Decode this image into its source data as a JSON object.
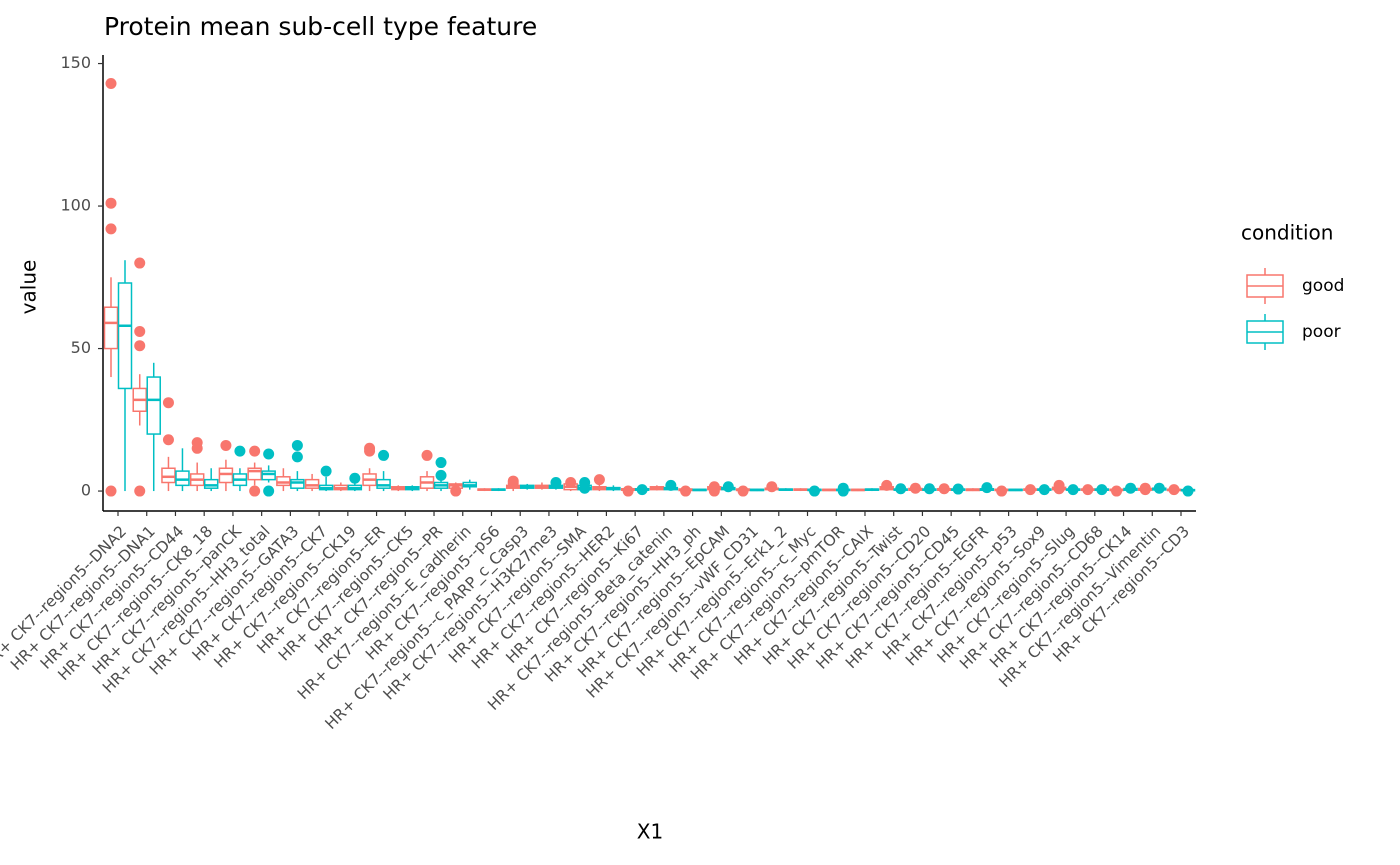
{
  "chart_data": {
    "type": "box",
    "title": "Protein mean sub-cell type feature",
    "x_label": "X1",
    "y_label": "value",
    "legend_title": "condition",
    "categories": [
      "HR+ CK7--region5--DNA2",
      "HR+ CK7--region5--DNA1",
      "HR+ CK7--region5--CD44",
      "HR+ CK7--region5--CK8_18",
      "HR+ CK7--region5--panCK",
      "HR+ CK7--region5--HH3_total",
      "HR+ CK7--region5--GATA3",
      "HR+ CK7--region5--CK7",
      "HR+ CK7--region5--CK19",
      "HR+ CK7--region5--ER",
      "HR+ CK7--region5--CK5",
      "HR+ CK7--region5--PR",
      "HR+ CK7--region5--E_cadherin",
      "HR+ CK7--region5--pS6",
      "HR+ CK7--region5--c_PARP_c_Casp3",
      "HR+ CK7--region5--H3K27me3",
      "HR+ CK7--region5--SMA",
      "HR+ CK7--region5--HER2",
      "HR+ CK7--region5--Ki67",
      "HR+ CK7--region5--Beta_catenin",
      "HR+ CK7--region5--HH3_ph",
      "HR+ CK7--region5--EpCAM",
      "HR+ CK7--region5--vWF_CD31",
      "HR+ CK7--region5--Erk1_2",
      "HR+ CK7--region5--c_Myc",
      "HR+ CK7--region5--pmTOR",
      "HR+ CK7--region5--CAIX",
      "HR+ CK7--region5--Twist",
      "HR+ CK7--region5--CD20",
      "HR+ CK7--region5--CD45",
      "HR+ CK7--region5--EGFR",
      "HR+ CK7--region5--p53",
      "HR+ CK7--region5--Sox9",
      "HR+ CK7--region5--Slug",
      "HR+ CK7--region5--CD68",
      "HR+ CK7--region5--CK14",
      "HR+ CK7--region5--Vimentin",
      "HR+ CK7--region5--CD3"
    ],
    "ylim": [
      -7,
      153
    ],
    "yticks": [
      0,
      50,
      100,
      150
    ],
    "series": [
      {
        "name": "good",
        "color": "#f8766d",
        "low": [
          40,
          23,
          0,
          0,
          0,
          2,
          0,
          0,
          0,
          0,
          0,
          0,
          0.5,
          0,
          0,
          0.5,
          0,
          0,
          0,
          0.2,
          0,
          0,
          0,
          0.3,
          0,
          0,
          0,
          0.2,
          0,
          0,
          0,
          0,
          0,
          0.2,
          0,
          0,
          0,
          0
        ],
        "q1": [
          50,
          28,
          3,
          2,
          3,
          4,
          2,
          1,
          0.5,
          2,
          0.5,
          1,
          1,
          0.3,
          1,
          1,
          0.5,
          0.5,
          0.3,
          0.5,
          0.2,
          0.5,
          0.2,
          0.5,
          0.3,
          0.2,
          0.2,
          0.5,
          0.3,
          0.3,
          0.2,
          0.2,
          0.3,
          0.5,
          0.3,
          0.2,
          0.3,
          0.2
        ],
        "median": [
          59,
          32,
          5,
          4,
          6,
          7,
          3,
          2,
          1,
          4,
          1,
          3,
          2,
          0.5,
          1.5,
          1.5,
          1.5,
          1,
          0.5,
          1,
          0.5,
          1,
          0.5,
          0.8,
          0.5,
          0.4,
          0.4,
          1,
          0.6,
          0.5,
          0.5,
          0.4,
          0.5,
          1,
          0.5,
          0.4,
          0.6,
          0.4
        ],
        "q3": [
          64.5,
          36,
          8,
          6,
          8,
          8,
          5,
          4,
          2,
          6,
          1.5,
          5,
          2.5,
          0.7,
          2,
          2,
          2.5,
          1.5,
          0.8,
          1.5,
          0.7,
          1.5,
          0.7,
          1,
          0.7,
          0.6,
          0.6,
          1.5,
          0.9,
          0.8,
          0.7,
          0.6,
          0.7,
          1.3,
          0.7,
          0.6,
          0.9,
          0.6
        ],
        "high": [
          75,
          41,
          12,
          10,
          11,
          10,
          8,
          6,
          3,
          8,
          2,
          7,
          3,
          1,
          2.5,
          3,
          3,
          2.5,
          1,
          2,
          1,
          2,
          1,
          1.3,
          1,
          0.8,
          0.8,
          2,
          1.2,
          1,
          1,
          0.8,
          1,
          1.7,
          1,
          0.8,
          1.2,
          0.8
        ],
        "outliers": [
          [
            143,
            101,
            92,
            0
          ],
          [
            80,
            56,
            51,
            0
          ],
          [
            31,
            18
          ],
          [
            17,
            15
          ],
          [
            16
          ],
          [
            14,
            0
          ],
          [],
          [],
          [],
          [
            15,
            14
          ],
          [],
          [
            12.5
          ],
          [
            0
          ],
          [],
          [
            3.5,
            2.8
          ],
          [],
          [
            3
          ],
          [
            4
          ],
          [
            0
          ],
          [],
          [
            0
          ],
          [
            1.5,
            0
          ],
          [
            0
          ],
          [
            1.5
          ],
          [],
          [],
          [],
          [
            2
          ],
          [
            1
          ],
          [
            0.8
          ],
          [],
          [
            0
          ],
          [
            0.5
          ],
          [
            2,
            0.8
          ],
          [
            0.5
          ],
          [
            0
          ],
          [
            1,
            0.5
          ],
          [
            0.5
          ]
        ]
      },
      {
        "name": "poor",
        "color": "#00bfc4",
        "low": [
          0,
          0,
          0,
          0,
          0,
          3,
          0,
          0,
          0,
          0,
          0,
          0,
          0.5,
          0,
          0.5,
          0.5,
          0,
          0,
          0,
          0.2,
          0,
          0,
          0,
          0.1,
          0,
          0,
          0,
          0.1,
          0,
          0,
          0,
          0,
          0,
          0,
          0,
          0,
          0.1,
          0
        ],
        "q1": [
          36,
          20,
          2,
          1,
          2,
          4,
          1,
          0.5,
          0.5,
          1,
          0.5,
          1,
          1.5,
          0.3,
          1,
          1,
          0.5,
          0.5,
          0.3,
          0.5,
          0.2,
          0.5,
          0.2,
          0.3,
          0.2,
          0.2,
          0.3,
          0.3,
          0.3,
          0.3,
          0.3,
          0.2,
          0.3,
          0.3,
          0.3,
          0.3,
          0.4,
          0.1
        ],
        "median": [
          58,
          32,
          4,
          2,
          4,
          6,
          3,
          1,
          1,
          2,
          1,
          2,
          2,
          0.5,
          1.5,
          1.5,
          1,
          1,
          0.5,
          1,
          0.4,
          1,
          0.4,
          0.5,
          0.4,
          0.4,
          0.5,
          0.5,
          0.5,
          0.5,
          0.5,
          0.4,
          0.5,
          0.5,
          0.5,
          0.6,
          0.7,
          0.3
        ],
        "q3": [
          73,
          40,
          7,
          4,
          6,
          7,
          4,
          2,
          2,
          4,
          1.5,
          3,
          3,
          0.7,
          2,
          2,
          2,
          1.2,
          0.8,
          1.2,
          0.6,
          1.2,
          0.6,
          0.7,
          0.6,
          0.6,
          0.7,
          0.7,
          0.7,
          0.7,
          0.8,
          0.6,
          0.7,
          0.7,
          0.7,
          0.9,
          1,
          0.5
        ],
        "high": [
          81,
          45,
          15,
          8,
          8,
          9,
          7,
          5,
          3,
          7,
          2,
          4,
          4,
          1,
          2.5,
          2.5,
          3,
          2,
          1,
          1.5,
          0.8,
          1.5,
          0.8,
          1,
          0.8,
          0.8,
          1,
          1,
          0.9,
          0.9,
          1,
          0.8,
          1,
          1,
          1,
          1.2,
          1.3,
          0.7
        ],
        "outliers": [
          [],
          [],
          [],
          [],
          [
            14
          ],
          [
            13,
            0
          ],
          [
            16,
            12
          ],
          [
            7
          ],
          [
            4.5
          ],
          [
            12.5
          ],
          [],
          [
            10,
            5.5
          ],
          [],
          [],
          [],
          [
            3
          ],
          [
            3,
            1
          ],
          [],
          [
            0.5
          ],
          [
            2
          ],
          [],
          [
            1.5
          ],
          [],
          [],
          [
            0
          ],
          [
            1,
            0
          ],
          [],
          [
            0.8
          ],
          [
            0.8
          ],
          [
            0.7
          ],
          [
            1.2
          ],
          [],
          [
            0.5
          ],
          [
            0.5
          ],
          [
            0.5
          ],
          [
            1
          ],
          [
            1
          ],
          [
            0
          ]
        ]
      }
    ]
  }
}
